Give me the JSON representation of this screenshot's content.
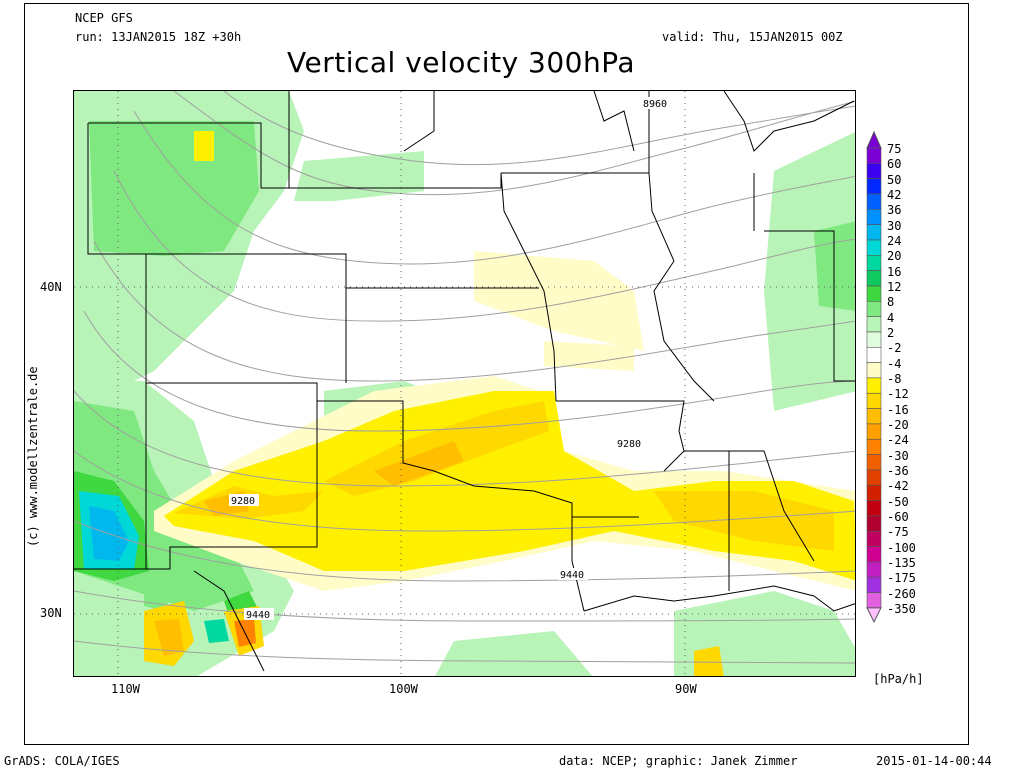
{
  "header": {
    "model": "NCEP GFS",
    "run": "run: 13JAN2015 18Z +30h",
    "valid": "valid: Thu, 15JAN2015 00Z",
    "title": "Vertical velocity 300hPa"
  },
  "side_text": "(c) www.modellzentrale.de",
  "footer": {
    "left": "GrADS: COLA/IGES",
    "center": "data: NCEP; graphic: Janek Zimmer",
    "right": "2015-01-14-00:44"
  },
  "axes": {
    "lon_labels": [
      "110W",
      "100W",
      "90W"
    ],
    "lat_labels": [
      "40N",
      "30N"
    ]
  },
  "contour_labels": [
    "8960",
    "9280",
    "9280",
    "9440",
    "9440"
  ],
  "legend": {
    "unit": "[hPa/h]",
    "levels": [
      "75",
      "60",
      "50",
      "42",
      "36",
      "30",
      "24",
      "20",
      "16",
      "12",
      "8",
      "4",
      "2",
      "-2",
      "-4",
      "-8",
      "-12",
      "-16",
      "-20",
      "-24",
      "-30",
      "-36",
      "-42",
      "-50",
      "-60",
      "-75",
      "-100",
      "-135",
      "-175",
      "-260",
      "-350"
    ],
    "colors": [
      "#7b00d6",
      "#3c00f0",
      "#0028ff",
      "#0060ff",
      "#0090ff",
      "#00b8ee",
      "#00d8d8",
      "#00d8a0",
      "#10c860",
      "#40d840",
      "#80e880",
      "#b8f4b8",
      "#e0fce0",
      "#ffffff",
      "#fffcc8",
      "#fff000",
      "#ffd800",
      "#ffbe00",
      "#ffa000",
      "#ff8200",
      "#f06000",
      "#e04000",
      "#d02000",
      "#c00010",
      "#b00030",
      "#c00060",
      "#d00090",
      "#c020c0",
      "#a030e0",
      "#e060e0",
      "#ffc0ff"
    ]
  },
  "colors": {
    "contour": "#a0a0a0",
    "border": "#000000"
  }
}
